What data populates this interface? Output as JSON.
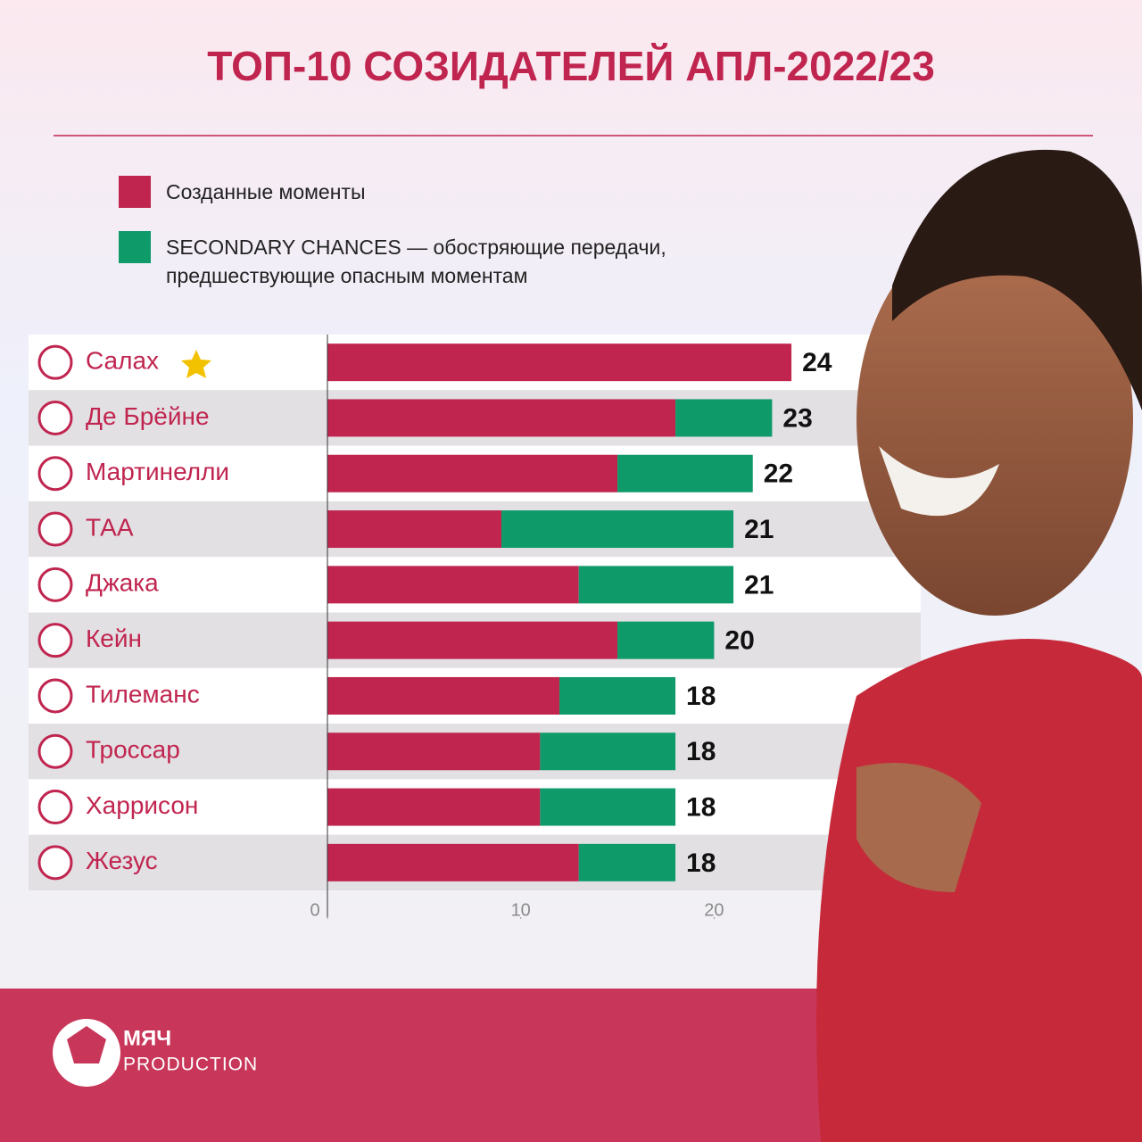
{
  "chart_data": {
    "type": "stacked-bar-horizontal",
    "title": "ТОП-10 СОЗИДАТЕЛЕЙ АПЛ-2022/23",
    "categories": [
      "Салах",
      "Де Брёйне",
      "Мартинелли",
      "ТАА",
      "Джака",
      "Кейн",
      "Тилеманс",
      "Троссар",
      "Харрисон",
      "Жезус"
    ],
    "series": [
      {
        "name": "Созданные моменты",
        "color": "#c0254f",
        "values": [
          24,
          18,
          15,
          9,
          13,
          15,
          12,
          11,
          11,
          13
        ]
      },
      {
        "name": "SECONDARY CHANCES — обостряющие передачи, предшествующие опасным моментам",
        "color": "#0f9a6a",
        "values": [
          0,
          5,
          7,
          12,
          8,
          5,
          6,
          7,
          7,
          5
        ]
      }
    ],
    "totals": [
      24,
      23,
      22,
      21,
      21,
      20,
      18,
      18,
      18,
      18
    ],
    "xlim": [
      0,
      30
    ],
    "xticks": [
      0,
      10,
      20
    ]
  },
  "footer": {
    "brand": "МЯЧ",
    "sub": "PRODUCTION"
  }
}
